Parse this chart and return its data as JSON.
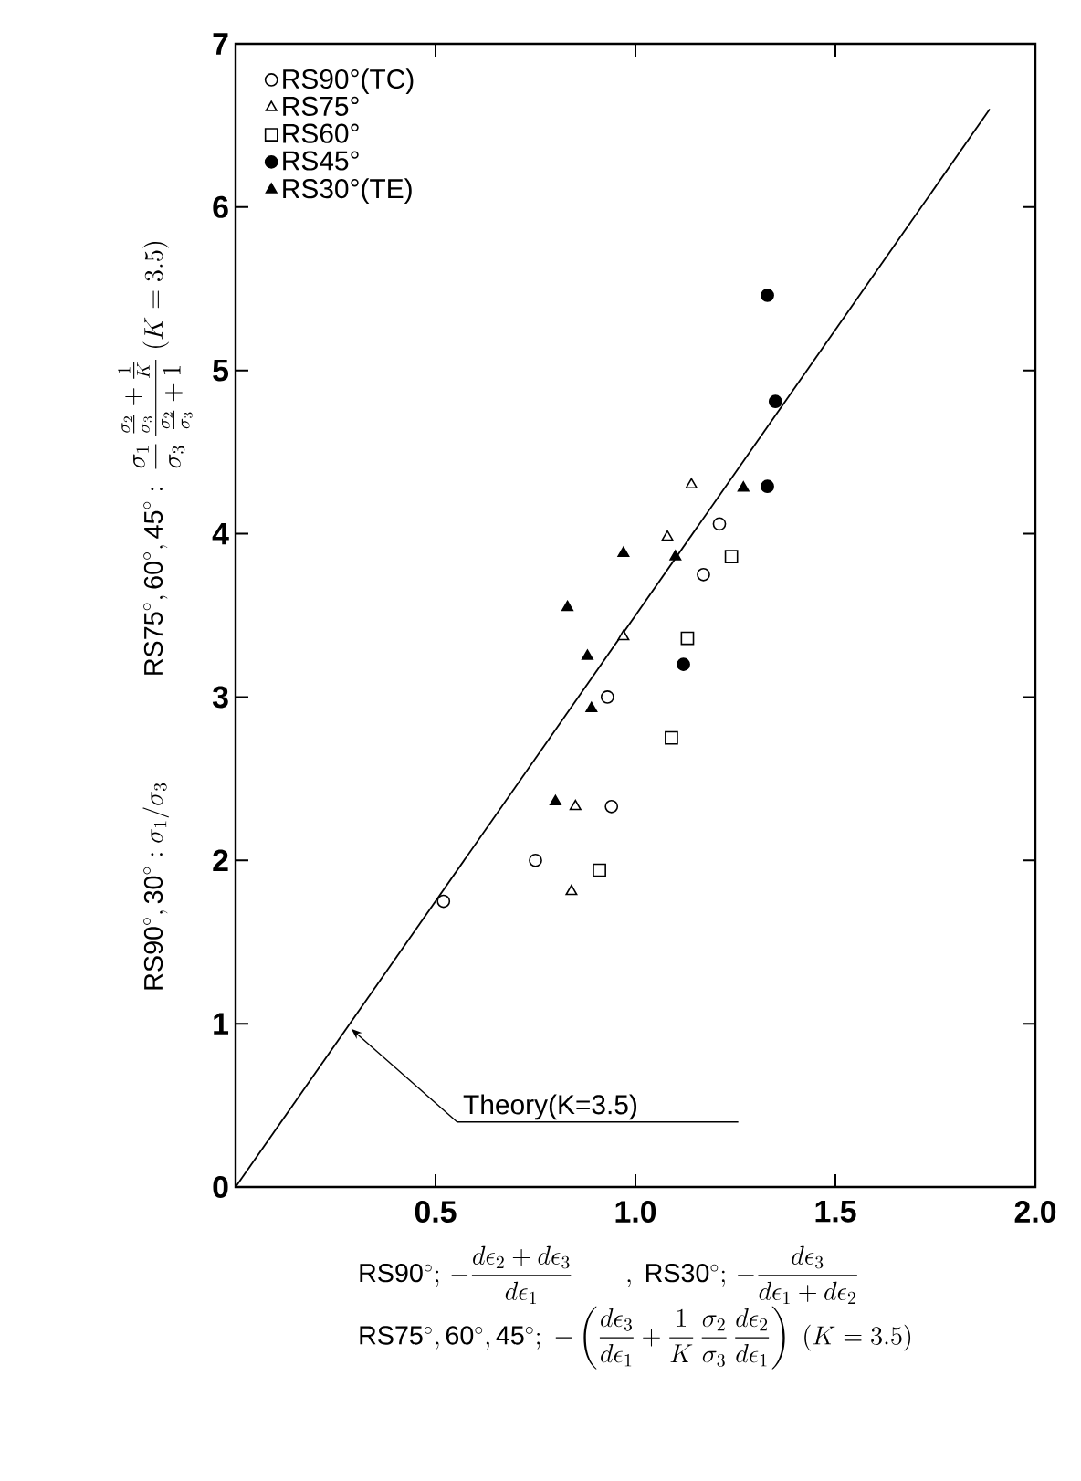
{
  "chart_data": {
    "type": "scatter",
    "xlabel": "\\begin{array}{l}\\mathrm{RS90^{\\circ}};\\,-\\dfrac{d\\epsilon_2+d\\epsilon_3}{d\\epsilon_1}\\qquad,\\ \\mathrm{RS30^{\\circ}};\\,-\\dfrac{d\\epsilon_3}{d\\epsilon_1+d\\epsilon_2}\\\\[8pt]\\mathrm{RS75^{\\circ},60^{\\circ},45^{\\circ}};\\ -\\left(\\dfrac{d\\epsilon_3}{d\\epsilon_1}+\\dfrac{1}{K}\\,\\dfrac{\\sigma_2}{\\sigma_3}\\,\\dfrac{d\\epsilon_2}{d\\epsilon_1}\\right)\\ (K=3.5)\\end{array}",
    "ylabel": "\\mathrm{RS90^{\\circ},30^{\\circ}}:\\sigma_1/\\sigma_3\\qquad\\qquad\\mathrm{RS75^{\\circ},60^{\\circ},45^{\\circ}}:\\ \\dfrac{\\sigma_1}{\\sigma_3}\\,\\dfrac{\\frac{\\sigma_2}{\\sigma_3}+\\frac{1}{K}}{\\frac{\\sigma_2}{\\sigma_3}+1}\\ (K=3.5)",
    "xlim": [
      0,
      2
    ],
    "ylim": [
      0,
      7
    ],
    "xticks": [
      {
        "value": 0,
        "label": null
      },
      {
        "value": 0.5,
        "label": "0.5"
      },
      {
        "value": 1,
        "label": "1.0"
      },
      {
        "value": 1.5,
        "label": "1.5"
      },
      {
        "value": 2,
        "label": "2.0"
      }
    ],
    "yticks": [
      0,
      1,
      2,
      3,
      4,
      5,
      6,
      7
    ],
    "legend": "top left",
    "grid": false,
    "annotations": [
      {
        "text": "Theory(K=3.5)",
        "x": 0.28,
        "y": 0.98
      }
    ],
    "series": [
      {
        "name": "RS90°(TC)",
        "color": "#000000",
        "marker": "circle",
        "x": [
          1.21,
          1.17,
          0.93,
          0.94,
          0.75,
          0.52
        ],
        "values": [
          4.06,
          3.75,
          3.0,
          2.33,
          2.0,
          1.75
        ]
      },
      {
        "name": "RS75°",
        "color": "#000000",
        "marker": "triangle",
        "x": [
          1.14,
          1.08,
          0.97,
          0.85,
          0.84
        ],
        "values": [
          4.3,
          3.98,
          3.37,
          2.33,
          1.81
        ]
      },
      {
        "name": "RS60°",
        "color": "#000000",
        "marker": "square",
        "x": [
          1.24,
          1.13,
          1.09,
          0.91
        ],
        "values": [
          3.86,
          3.36,
          2.75,
          1.94
        ]
      },
      {
        "name": "RS45°",
        "color": "#000000",
        "marker": "circle",
        "x": [
          1.33,
          1.35,
          1.33,
          1.12
        ],
        "values": [
          5.46,
          4.81,
          4.29,
          3.2
        ]
      },
      {
        "name": "RS30°(TE)",
        "color": "#000000",
        "marker": "triangle",
        "x": [
          1.27,
          1.1,
          0.97,
          0.83,
          0.88,
          0.89,
          0.8
        ],
        "values": [
          4.28,
          3.86,
          3.88,
          3.55,
          3.25,
          2.93,
          2.36
        ]
      },
      {
        "type": "line",
        "color": "#000000",
        "marker": "none",
        "line_style": "solid",
        "x": [
          0,
          1.886
        ],
        "values": [
          0,
          6.6
        ]
      }
    ]
  }
}
